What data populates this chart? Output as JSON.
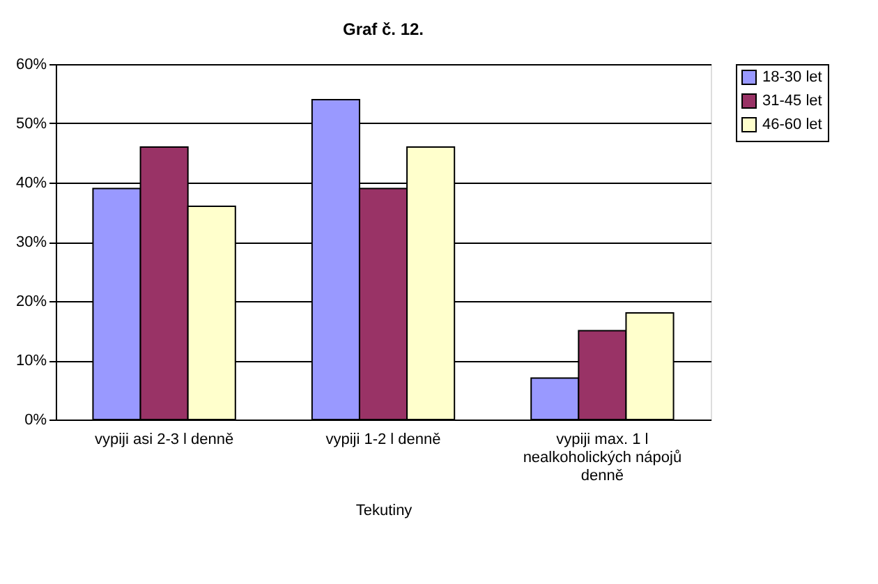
{
  "chart_data": {
    "type": "bar",
    "title": "Graf č. 12.",
    "xlabel": "Tekutiny",
    "categories": [
      "vypiji asi 2-3 l denně",
      "vypiji 1-2 l denně",
      "vypiji max. 1 l nealkoholických nápojů denně"
    ],
    "series": [
      {
        "name": "18-30 let",
        "color": "#9999ff",
        "values": [
          39,
          54,
          7
        ]
      },
      {
        "name": "31-45 let",
        "color": "#993366",
        "values": [
          46,
          39,
          15
        ]
      },
      {
        "name": "46-60 let",
        "color": "#ffffcc",
        "values": [
          36,
          46,
          18
        ]
      }
    ],
    "ylim": [
      0,
      60
    ],
    "yticks": [
      {
        "value": 0,
        "label": "0%"
      },
      {
        "value": 10,
        "label": "10%"
      },
      {
        "value": 20,
        "label": "20%"
      },
      {
        "value": 30,
        "label": "30%"
      },
      {
        "value": 40,
        "label": "40%"
      },
      {
        "value": 50,
        "label": "50%"
      },
      {
        "value": 60,
        "label": "60%"
      }
    ],
    "grid": "y",
    "legend": "right"
  }
}
